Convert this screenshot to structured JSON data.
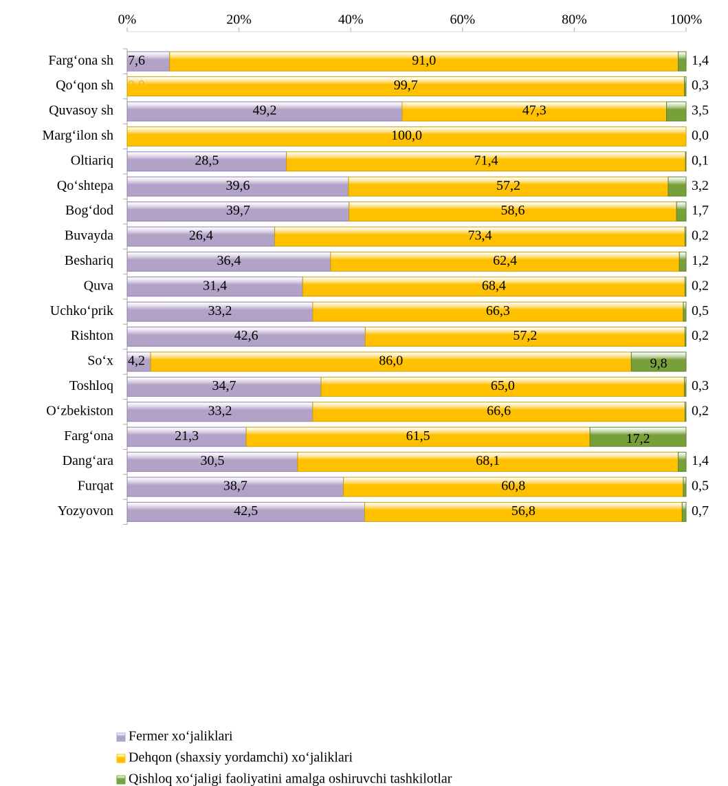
{
  "chart_data": {
    "type": "stacked_bar_horizontal",
    "categories": [
      "Farg‘ona sh",
      "Qo‘qon sh",
      "Quvasoy sh",
      "Marg‘ilon sh",
      "Oltiariq",
      "Qo‘shtepa",
      "Bog‘dod",
      "Buvayda",
      "Beshariq",
      "Quva",
      "Uchko‘prik",
      "Rishton",
      "So‘x",
      "Toshloq",
      "O‘zbekiston",
      "Farg‘ona",
      "Dang‘ara",
      "Furqat",
      "Yozyovon"
    ],
    "series": [
      {
        "name": "Fermer xo‘jaliklari",
        "color": "#b3a2c7",
        "values": [
          7.6,
          0.0,
          49.2,
          0,
          28.5,
          39.6,
          39.7,
          26.4,
          36.4,
          31.4,
          33.2,
          42.6,
          4.2,
          34.7,
          33.2,
          21.3,
          30.5,
          38.7,
          42.5
        ],
        "value_labels": [
          "7,6",
          "0,0",
          "49,2",
          null,
          "28,5",
          "39,6",
          "39,7",
          "26,4",
          "36,4",
          "31,4",
          "33,2",
          "42,6",
          "4,2",
          "34,7",
          "33,2",
          "21,3",
          "30,5",
          "38,7",
          "42,5"
        ]
      },
      {
        "name": "Dehqon (shaxsiy yordamchi) xo‘jaliklari",
        "color": "#ffc000",
        "values": [
          91.0,
          99.7,
          47.3,
          100.0,
          71.4,
          57.2,
          58.6,
          73.4,
          62.4,
          68.4,
          66.3,
          57.2,
          86.0,
          65.0,
          66.6,
          61.5,
          68.1,
          60.8,
          56.8
        ],
        "value_labels": [
          "91,0",
          "99,7",
          "47,3",
          "100,0",
          "71,4",
          "57,2",
          "58,6",
          "73,4",
          "62,4",
          "68,4",
          "66,3",
          "57,2",
          "86,0",
          "65,0",
          "66,6",
          "61,5",
          "68,1",
          "60,8",
          "56,8"
        ]
      },
      {
        "name": "Qishloq xo‘jaligi faoliyatini  amalga oshiruvchi tashkilotlar",
        "color": "#77a03b",
        "values": [
          1.4,
          0.3,
          3.5,
          0.0,
          0.1,
          3.2,
          1.7,
          0.2,
          1.2,
          0.2,
          0.5,
          0.2,
          9.8,
          0.3,
          0.2,
          17.2,
          1.4,
          0.5,
          0.7
        ],
        "value_labels": [
          "1,4",
          "0,3",
          "3,5",
          "0,0",
          "0,1",
          "3,2",
          "1,7",
          "0,2",
          "1,2",
          "0,2",
          "0,5",
          "0,2",
          "9,8",
          "0,3",
          "0,2",
          "17,2",
          "1,4",
          "0,5",
          "0,7"
        ]
      }
    ],
    "xlim": [
      0,
      100
    ],
    "xticks": [
      {
        "value": 0,
        "label": "0%"
      },
      {
        "value": 20,
        "label": "20%"
      },
      {
        "value": 40,
        "label": "40%"
      },
      {
        "value": 60,
        "label": "60%"
      },
      {
        "value": 80,
        "label": "80%"
      },
      {
        "value": 100,
        "label": "100%"
      }
    ]
  }
}
